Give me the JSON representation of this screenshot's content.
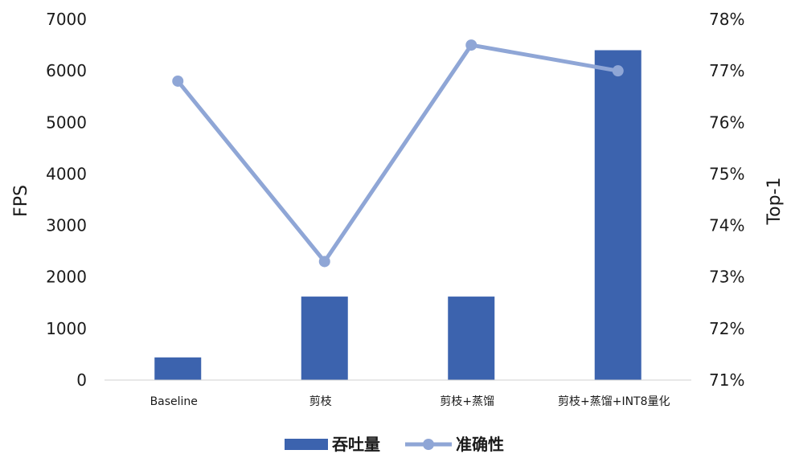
{
  "chart_data": {
    "type": "bar",
    "categories": [
      "Baseline",
      "剪枝",
      "剪枝+蒸馏",
      "剪枝+蒸馏+INT8量化"
    ],
    "series": [
      {
        "name": "吞吐量",
        "type": "bar",
        "axis": "left",
        "color": "#3C63AE",
        "values": [
          440,
          1620,
          1620,
          6400
        ]
      },
      {
        "name": "准确性",
        "type": "line",
        "axis": "right",
        "color": "#8FA6D6",
        "values": [
          76.8,
          73.3,
          77.5,
          77.0
        ]
      }
    ],
    "y_left": {
      "label": "FPS",
      "ylim": [
        0,
        7000
      ],
      "ticks": [
        "0",
        "1000",
        "2000",
        "3000",
        "4000",
        "5000",
        "6000",
        "7000"
      ]
    },
    "y_right": {
      "label": "Top-1",
      "ylim": [
        71,
        78
      ],
      "ticks": [
        "71%",
        "72%",
        "73%",
        "74%",
        "75%",
        "76%",
        "77%",
        "78%"
      ]
    },
    "legend": {
      "position": "bottom"
    },
    "grid": false
  }
}
